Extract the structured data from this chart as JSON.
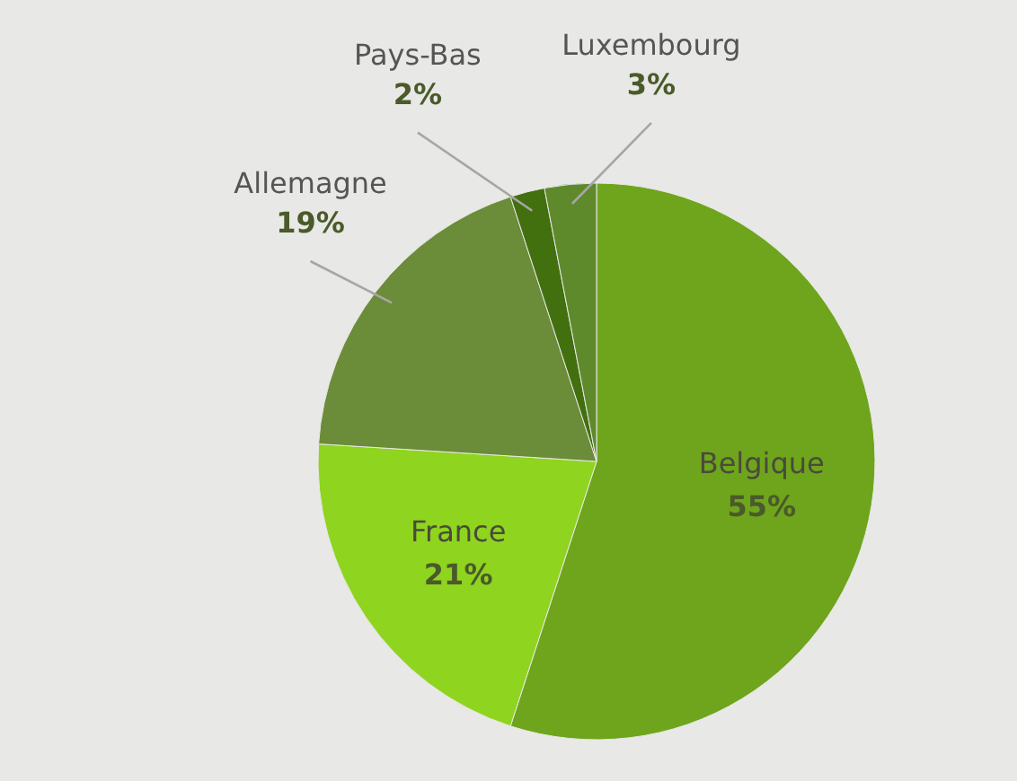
{
  "chart_data": {
    "type": "pie",
    "categories": [
      "Belgique",
      "France",
      "Allemagne",
      "Pays-Bas",
      "Luxembourg"
    ],
    "values": [
      55,
      21,
      19,
      2,
      3
    ],
    "colors": [
      "#6ea51c",
      "#8fd41f",
      "#6b8c38",
      "#42700f",
      "#5e8a2c"
    ],
    "value_labels": [
      "55%",
      "21%",
      "19%",
      "2%",
      "3%"
    ],
    "legend": false
  }
}
